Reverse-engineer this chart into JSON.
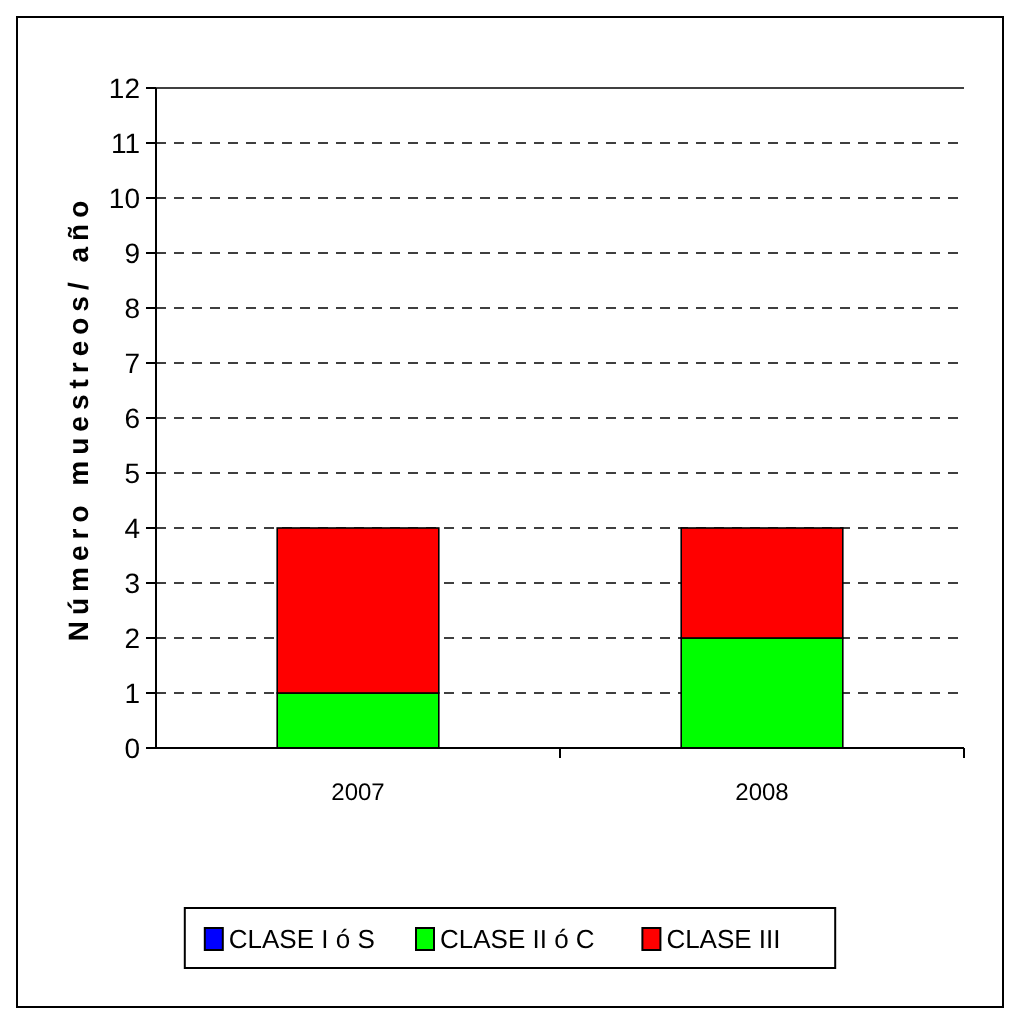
{
  "chart_data": {
    "type": "bar",
    "stacked": true,
    "ylabel": "Número muestreos/ año",
    "categories": [
      "2007",
      "2008"
    ],
    "series": [
      {
        "name": "CLASE I ó S",
        "color": "#0000ff",
        "values": [
          0,
          0
        ]
      },
      {
        "name": "CLASE II ó C",
        "color": "#00ff00",
        "values": [
          1,
          2
        ]
      },
      {
        "name": "CLASE III",
        "color": "#ff0000",
        "values": [
          3,
          2
        ]
      }
    ],
    "ylim": [
      0,
      12
    ],
    "yticks": [
      0,
      1,
      2,
      3,
      4,
      5,
      6,
      7,
      8,
      9,
      10,
      11,
      12
    ],
    "grid": "y",
    "legend": "bottom"
  }
}
